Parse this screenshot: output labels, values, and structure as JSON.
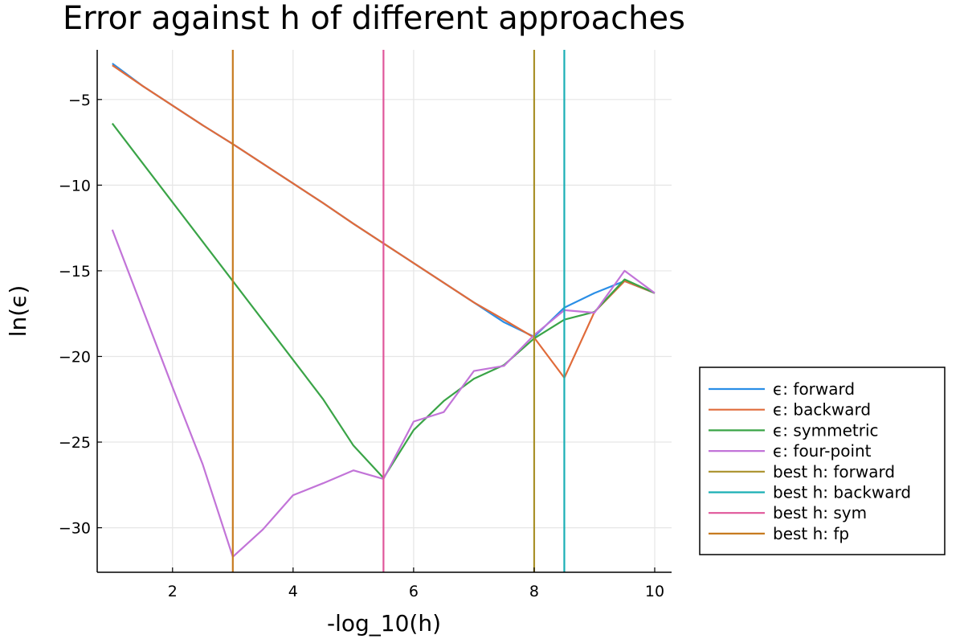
{
  "chart_data": {
    "type": "line",
    "title": "Error against h of different approaches",
    "xlabel": "-log_10(h)",
    "ylabel": "ln(ϵ)",
    "xlim": [
      0.75,
      10.28
    ],
    "ylim": [
      -32.6,
      -2.1
    ],
    "xticks": [
      2,
      4,
      6,
      8,
      10
    ],
    "yticks": [
      -5,
      -10,
      -15,
      -20,
      -25,
      -30
    ],
    "xtick_labels": [
      "2",
      "4",
      "6",
      "8",
      "10"
    ],
    "ytick_labels": [
      "−5",
      "−10",
      "−15",
      "−20",
      "−25",
      "−30"
    ],
    "grid": true,
    "legend_position": "bottom-right outside",
    "series": [
      {
        "name": "ϵ: forward",
        "color": "#2a8ee6",
        "x": [
          1,
          1.5,
          2,
          2.5,
          3,
          3.5,
          4,
          4.5,
          5,
          5.5,
          6,
          6.5,
          7,
          7.5,
          8,
          8.5,
          9,
          9.5,
          10
        ],
        "y": [
          -2.9,
          -4.2,
          -5.35,
          -6.5,
          -7.6,
          -8.75,
          -9.9,
          -11.05,
          -12.25,
          -13.4,
          -14.55,
          -15.7,
          -16.85,
          -18.0,
          -18.85,
          -17.15,
          -16.3,
          -15.6,
          -16.3
        ]
      },
      {
        "name": "ϵ: backward",
        "color": "#e06b3a",
        "x": [
          1,
          1.5,
          2,
          2.5,
          3,
          3.5,
          4,
          4.5,
          5,
          5.5,
          6,
          6.5,
          7,
          7.5,
          8,
          8.5,
          9,
          9.5,
          10
        ],
        "y": [
          -3.0,
          -4.2,
          -5.35,
          -6.5,
          -7.6,
          -8.75,
          -9.9,
          -11.05,
          -12.25,
          -13.4,
          -14.55,
          -15.7,
          -16.85,
          -17.85,
          -18.9,
          -21.25,
          -17.4,
          -15.6,
          -16.3
        ]
      },
      {
        "name": "ϵ: symmetric",
        "color": "#3aa447",
        "x": [
          1,
          1.5,
          2,
          2.5,
          3,
          3.5,
          4,
          4.5,
          5,
          5.5,
          6,
          6.5,
          7,
          7.5,
          8,
          8.5,
          9,
          9.5,
          10
        ],
        "y": [
          -6.4,
          -8.7,
          -11.0,
          -13.3,
          -15.6,
          -17.9,
          -20.2,
          -22.5,
          -25.2,
          -27.1,
          -24.3,
          -22.6,
          -21.3,
          -20.5,
          -18.95,
          -17.85,
          -17.4,
          -15.5,
          -16.3
        ]
      },
      {
        "name": "ϵ: four-point",
        "color": "#c274d8",
        "x": [
          1,
          1.5,
          2,
          2.5,
          3,
          3.5,
          4,
          4.5,
          5,
          5.5,
          6,
          6.5,
          7,
          7.5,
          8,
          8.5,
          9,
          9.5,
          10
        ],
        "y": [
          -12.6,
          -17.2,
          -21.8,
          -26.3,
          -31.7,
          -30.1,
          -28.1,
          -27.4,
          -26.65,
          -27.15,
          -23.8,
          -23.25,
          -20.85,
          -20.55,
          -18.75,
          -17.3,
          -17.45,
          -15.0,
          -16.3
        ]
      }
    ],
    "vlines": [
      {
        "name": "best h: forward",
        "color": "#a9912a",
        "x": 8.0
      },
      {
        "name": "best h: backward",
        "color": "#1aafb5",
        "x": 8.5
      },
      {
        "name": "best h: sym",
        "color": "#e0579a",
        "x": 5.5
      },
      {
        "name": "best h: fp",
        "color": "#c77b1f",
        "x": 3.0
      }
    ]
  }
}
